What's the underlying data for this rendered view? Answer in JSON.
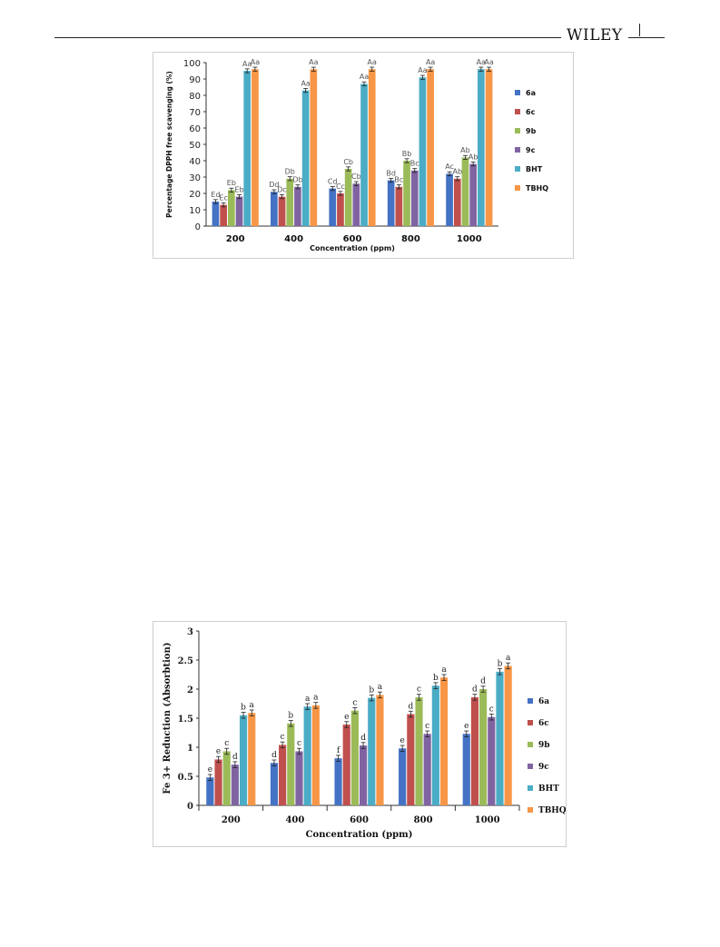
{
  "header": {
    "publisher": "WILEY"
  },
  "chart_data": [
    {
      "type": "bar",
      "xlabel": "Concentration (ppm)",
      "ylabel": "Percentage DPPH free scavenging (%)",
      "ylim": [
        0,
        100
      ],
      "yticks": [
        "0",
        "10",
        "20",
        "30",
        "40",
        "50",
        "60",
        "70",
        "80",
        "90",
        "100"
      ],
      "categories": [
        "200",
        "400",
        "600",
        "800",
        "1000"
      ],
      "legend_position": "right",
      "series": [
        {
          "name": "6a",
          "color": "#4472C4",
          "values": [
            15,
            21,
            23,
            28,
            32
          ],
          "labels": [
            "Ed",
            "Dd",
            "Cd",
            "Bd",
            "Ac"
          ]
        },
        {
          "name": "6c",
          "color": "#C0504D",
          "values": [
            13,
            18,
            20,
            24,
            29
          ],
          "labels": [
            "Ec",
            "Dc",
            "Cc",
            "Bc",
            "Ab"
          ]
        },
        {
          "name": "9b",
          "color": "#9BBB59",
          "values": [
            22,
            29,
            35,
            40,
            42
          ],
          "labels": [
            "Eb",
            "Db",
            "Cb",
            "Bb",
            "Ab"
          ]
        },
        {
          "name": "9c",
          "color": "#8064A2",
          "values": [
            18,
            24,
            26,
            34,
            38
          ],
          "labels": [
            "Eb",
            "Db",
            "Cb",
            "Bc",
            "Ab"
          ]
        },
        {
          "name": "BHT",
          "color": "#4BACC6",
          "values": [
            95,
            83,
            87,
            91,
            96
          ],
          "labels": [
            "Aa",
            "Aa",
            "Aa",
            "Aa",
            "Aa"
          ]
        },
        {
          "name": "TBHQ",
          "color": "#F79646",
          "values": [
            96,
            96,
            96,
            96,
            96
          ],
          "labels": [
            "Aa",
            "Aa",
            "Aa",
            "Aa",
            "Aa"
          ]
        }
      ]
    },
    {
      "type": "bar",
      "xlabel": "Concentration (ppm)",
      "ylabel": "Fe 3+ Reduction (Absorbtion)",
      "ylim": [
        0,
        3
      ],
      "yticks": [
        "0",
        "0.5",
        "1",
        "1.5",
        "2",
        "2.5",
        "3"
      ],
      "categories": [
        "200",
        "400",
        "600",
        "800",
        "1000"
      ],
      "legend_position": "right",
      "series": [
        {
          "name": "6a",
          "color": "#4472C4",
          "values": [
            0.48,
            0.73,
            0.81,
            0.98,
            1.23
          ],
          "labels": [
            "e",
            "d",
            "f",
            "e",
            "e"
          ]
        },
        {
          "name": "6c",
          "color": "#C0504D",
          "values": [
            0.79,
            1.04,
            1.39,
            1.57,
            1.86
          ],
          "labels": [
            "e",
            "c",
            "e",
            "d",
            "d"
          ]
        },
        {
          "name": "9b",
          "color": "#9BBB59",
          "values": [
            0.93,
            1.41,
            1.63,
            1.86,
            2.0
          ],
          "labels": [
            "c",
            "b",
            "c",
            "c",
            "d"
          ]
        },
        {
          "name": "9c",
          "color": "#8064A2",
          "values": [
            0.7,
            0.93,
            1.03,
            1.23,
            1.52
          ],
          "labels": [
            "d",
            "c",
            "d",
            "c",
            "c"
          ]
        },
        {
          "name": "BHT",
          "color": "#4BACC6",
          "values": [
            1.55,
            1.7,
            1.85,
            2.06,
            2.3
          ],
          "labels": [
            "b",
            "a",
            "b",
            "b",
            "b"
          ]
        },
        {
          "name": "TBHQ",
          "color": "#F79646",
          "values": [
            1.59,
            1.72,
            1.9,
            2.2,
            2.4
          ],
          "labels": [
            "a",
            "a",
            "a",
            "a",
            "a"
          ]
        }
      ]
    }
  ]
}
